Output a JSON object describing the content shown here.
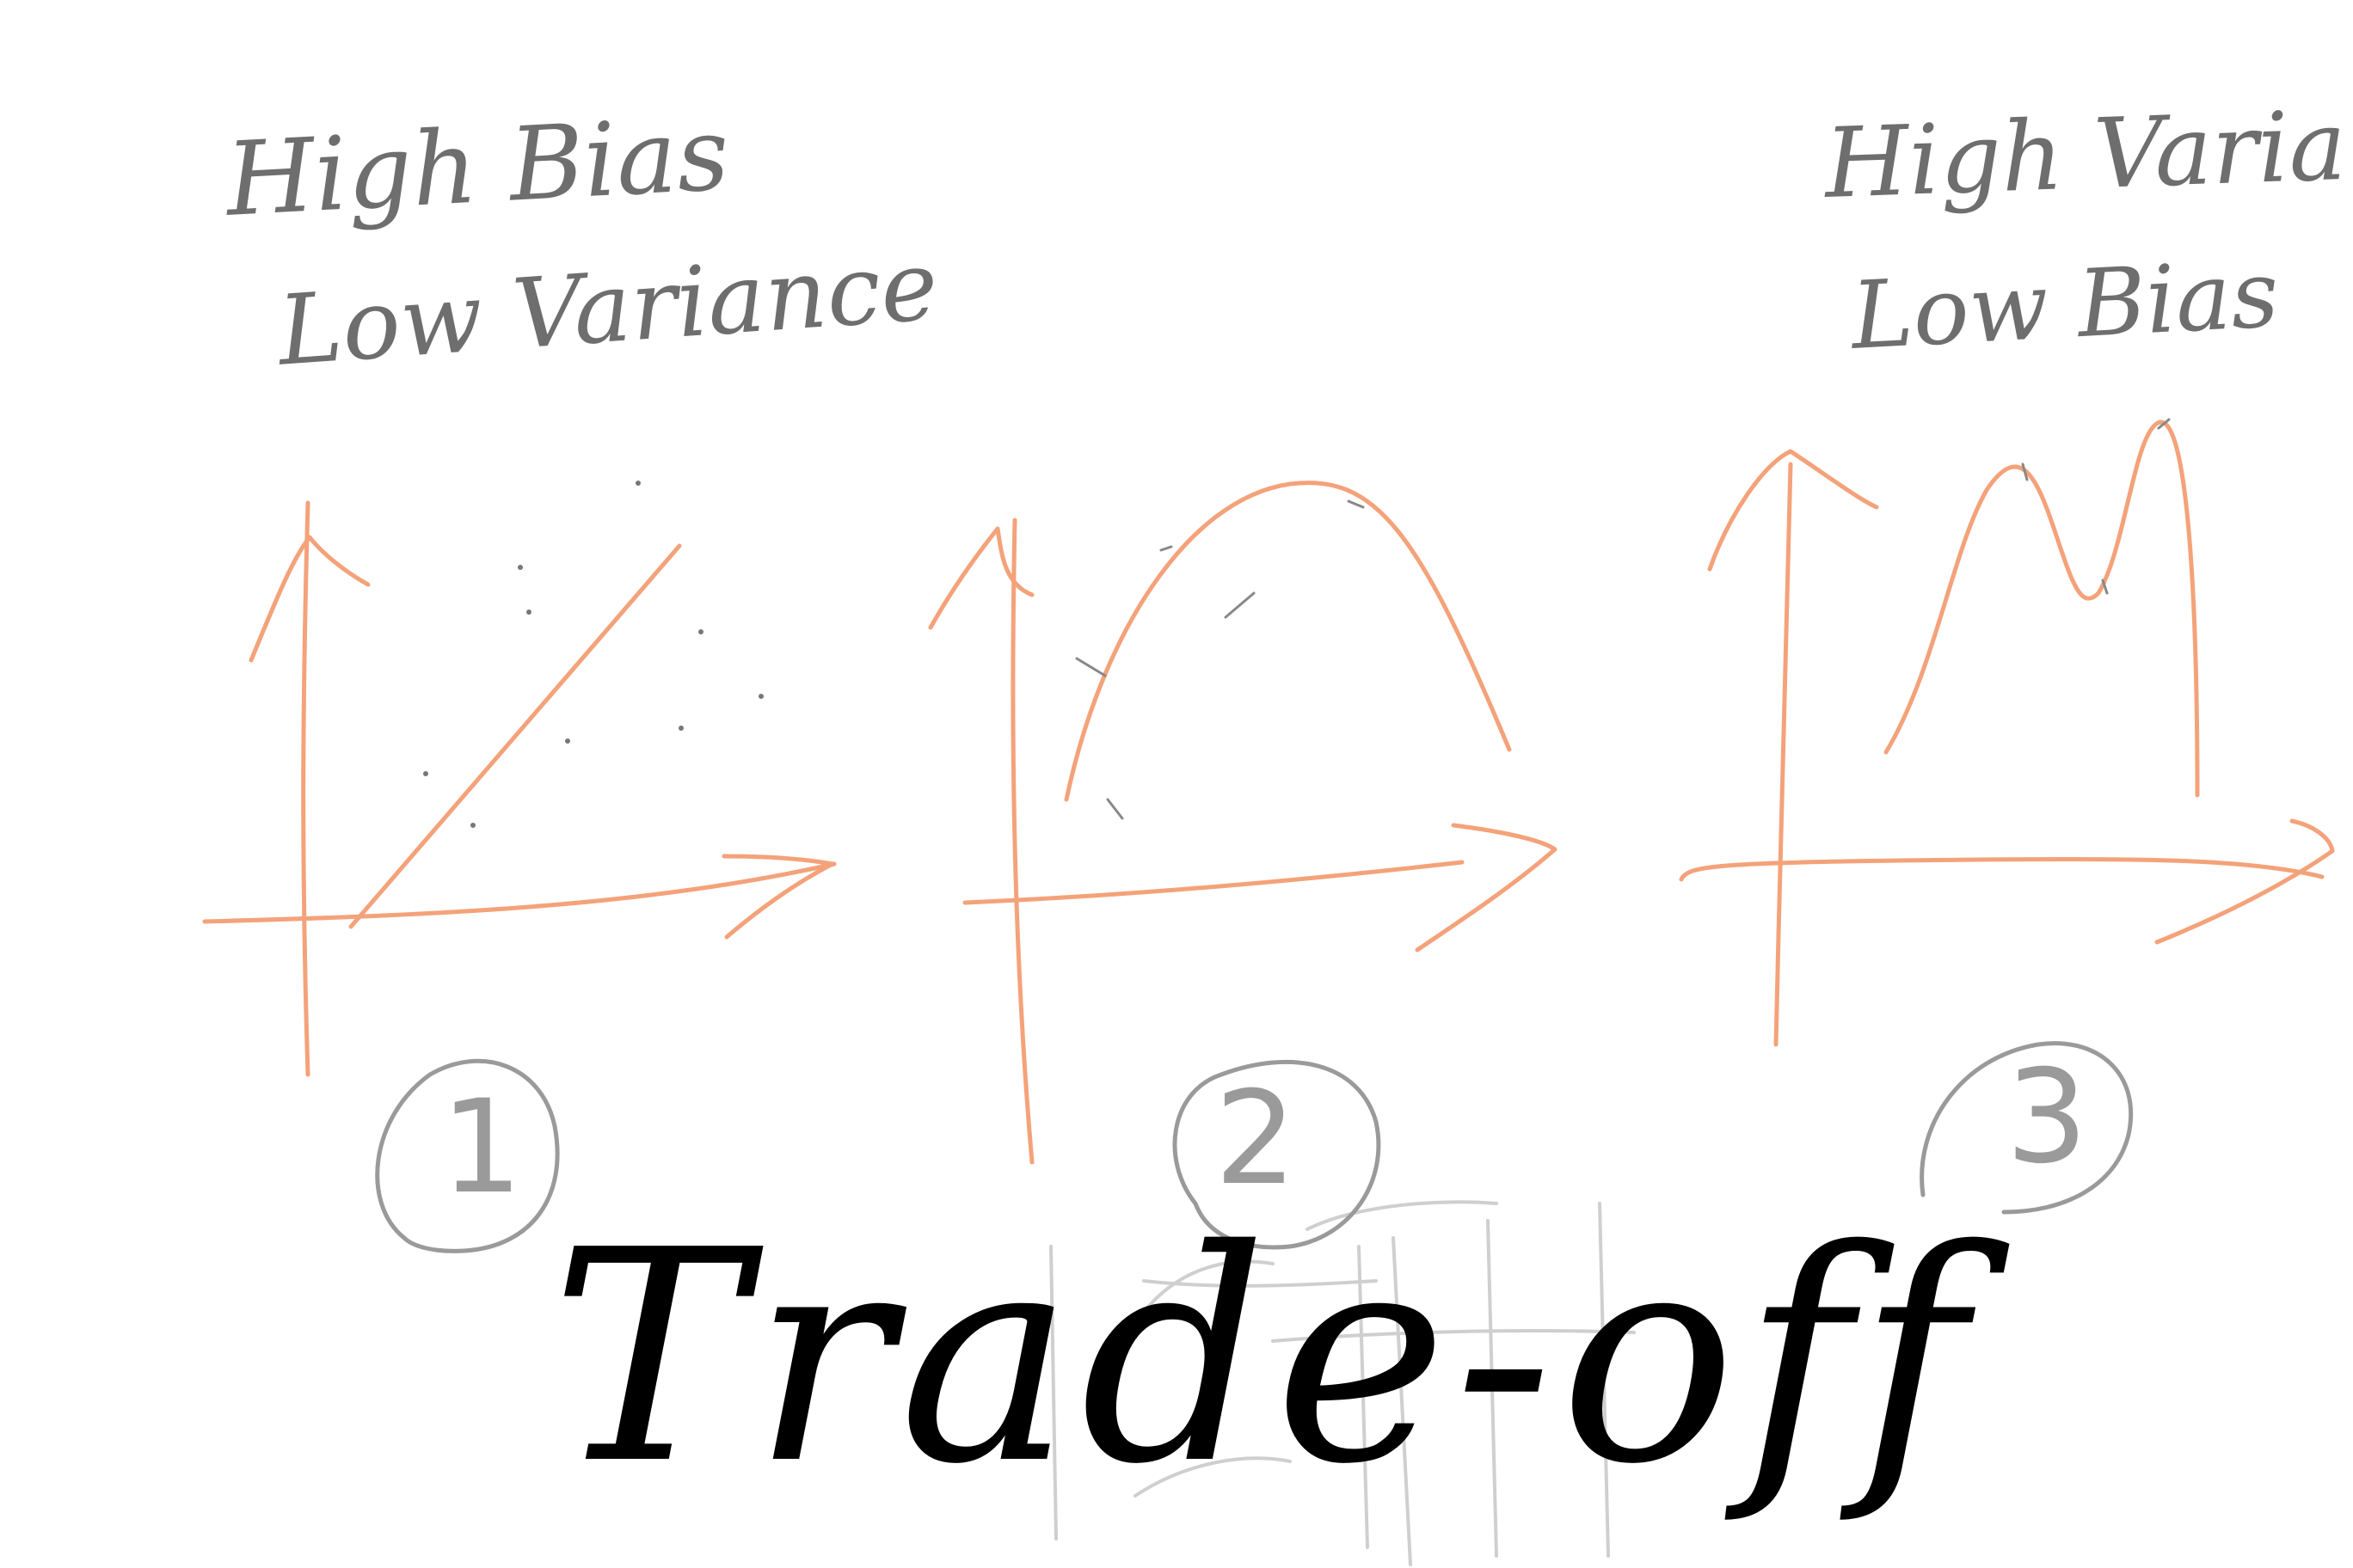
{
  "colors": {
    "background": "#ffffff",
    "axis_curve": "#f4a27a",
    "pencil": "#6e6e6e",
    "circle": "#9a9a9a",
    "ink": "#000000",
    "ghost": "#c8c8c8"
  },
  "panels": [
    {
      "label_line1": "High Bias",
      "label_line2": "Low Variance",
      "number": "1",
      "curve": "straight-line"
    },
    {
      "number": "2",
      "curve": "single-hump"
    },
    {
      "label_line1": "High Variance",
      "label_line2": "Low Bias",
      "number": "3",
      "curve": "wiggly-double-peak"
    }
  ],
  "title": "Trade-off"
}
